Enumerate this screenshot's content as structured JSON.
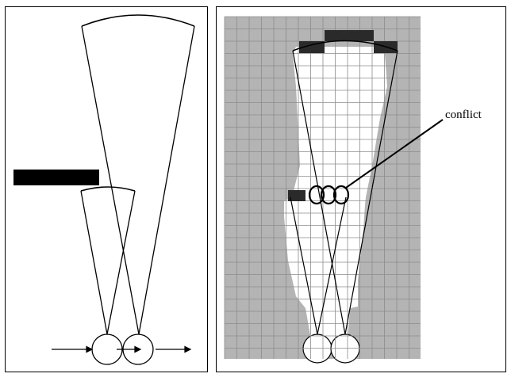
{
  "right_panel": {
    "annotation": "conflict"
  }
}
